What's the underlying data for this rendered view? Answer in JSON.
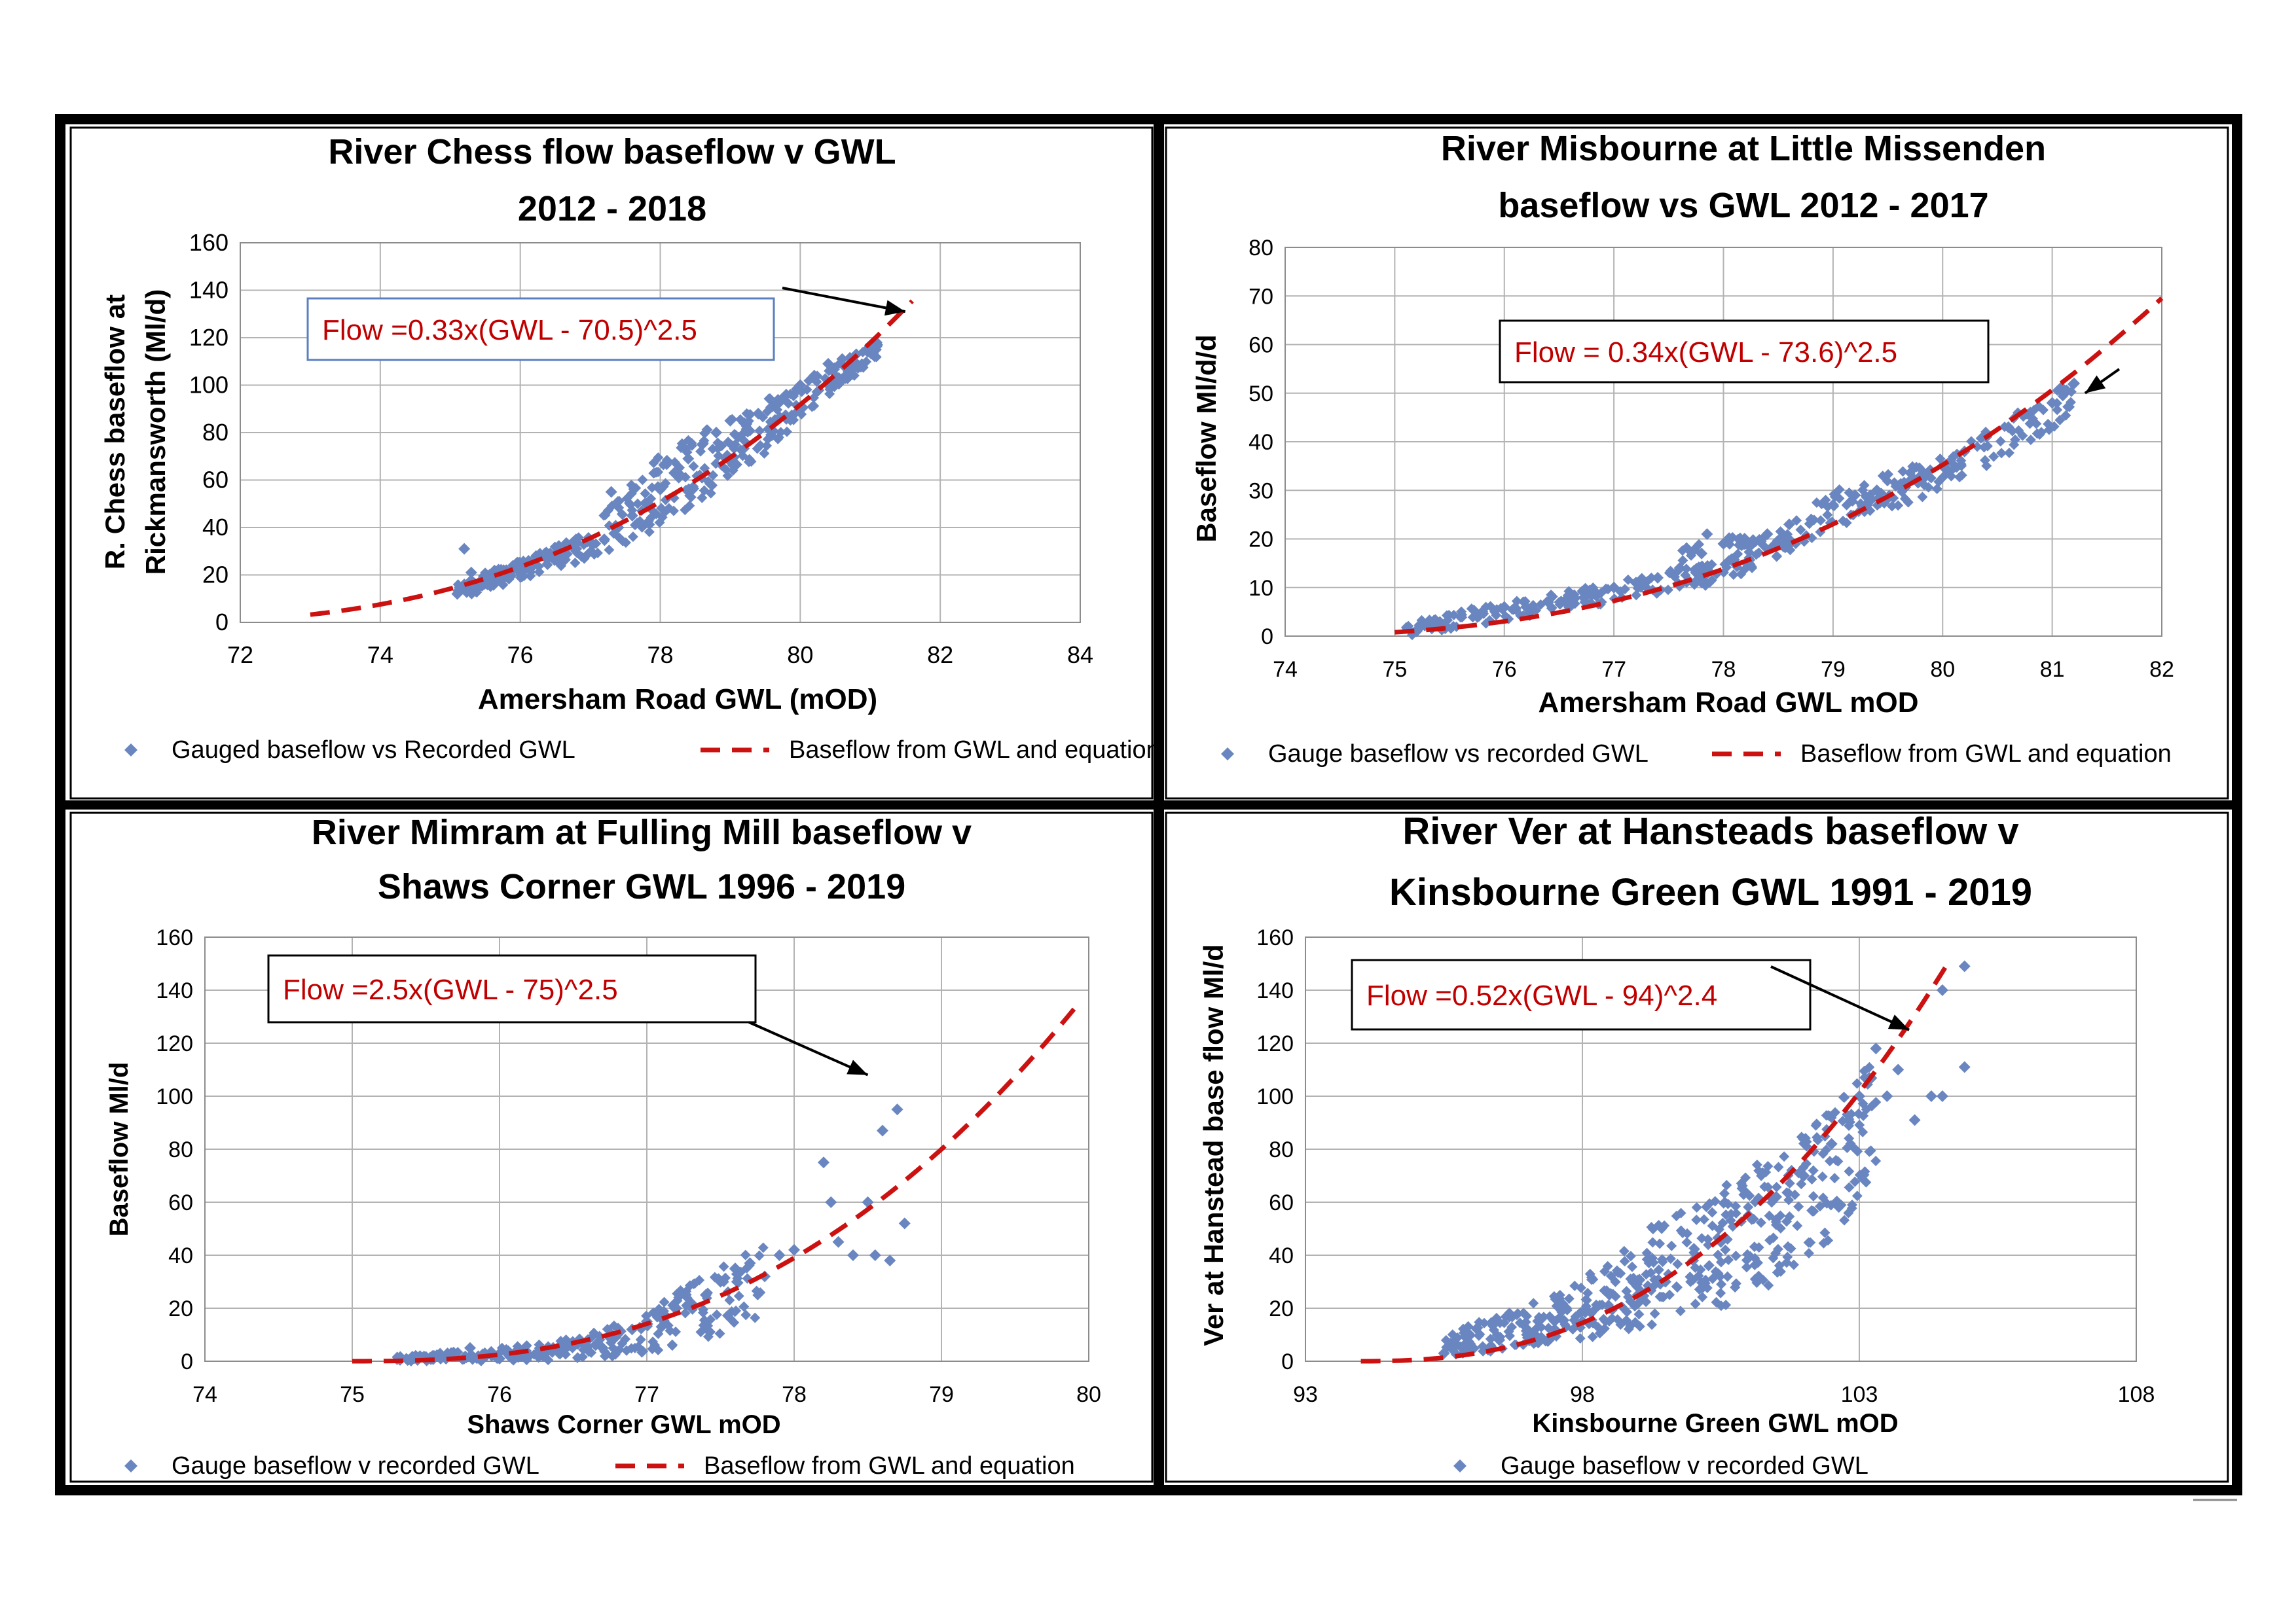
{
  "colors": {
    "marker": "#6A86C0",
    "curve": "#CC1111",
    "grid": "#B3B3B3",
    "frame": "#000000",
    "eqtext": "#C00000",
    "eqborder_blue": "#5B7FC0"
  },
  "chart_data": [
    {
      "id": "chess",
      "type": "scatter",
      "title_lines": [
        "River Chess flow baseflow v GWL",
        "2012 - 2018"
      ],
      "xlabel": "Amersham Road GWL (mOD)",
      "ylabel_lines": [
        "R. Chess baseflow at",
        "Rickmansworth (Ml/d)"
      ],
      "xlim": [
        72,
        84
      ],
      "ylim": [
        0,
        160
      ],
      "xticks": [
        72,
        74,
        76,
        78,
        80,
        82,
        84
      ],
      "yticks": [
        0,
        20,
        40,
        60,
        80,
        100,
        120,
        140,
        160
      ],
      "xtick_labels": [
        "72",
        "74",
        "76",
        "78",
        "80",
        "82",
        "84"
      ],
      "ytick_labels": [
        "0",
        "20",
        "40",
        "60",
        "80",
        "100",
        "120",
        "140",
        "160"
      ],
      "equation": {
        "text": "Flow =0.33x(GWL - 70.5)^2.5",
        "border": "blue",
        "arrow_to": [
          81.5,
          131
        ]
      },
      "curve": {
        "a": 0.33,
        "b": 70.5,
        "n": 2.5,
        "x_from": 73.0,
        "x_to": 81.6
      },
      "legend": [
        {
          "kind": "marker",
          "label": "Gauged baseflow vs Recorded GWL"
        },
        {
          "kind": "dash",
          "label": "Baseflow from GWL and equation"
        }
      ],
      "points": [
        [
          75.1,
          12
        ],
        [
          75.2,
          16
        ],
        [
          75.2,
          31
        ],
        [
          75.3,
          21
        ],
        [
          75.4,
          15
        ],
        [
          75.6,
          20
        ],
        [
          75.8,
          22
        ],
        [
          76.0,
          24
        ],
        [
          76.2,
          25
        ],
        [
          76.4,
          27
        ],
        [
          76.6,
          29
        ],
        [
          76.8,
          31
        ],
        [
          77.0,
          34
        ],
        [
          77.2,
          35
        ],
        [
          77.3,
          55
        ],
        [
          77.4,
          40
        ],
        [
          77.6,
          45
        ],
        [
          77.8,
          50
        ],
        [
          78.0,
          56
        ],
        [
          78.2,
          63
        ],
        [
          78.4,
          69
        ],
        [
          78.6,
          75
        ],
        [
          78.8,
          80
        ],
        [
          79.0,
          85
        ],
        [
          79.2,
          84
        ],
        [
          79.4,
          88
        ],
        [
          79.6,
          91
        ],
        [
          79.8,
          96
        ],
        [
          80.0,
          100
        ],
        [
          80.2,
          104
        ],
        [
          80.4,
          109
        ],
        [
          80.6,
          111
        ],
        [
          80.8,
          113
        ],
        [
          81.0,
          115
        ],
        [
          81.1,
          117
        ]
      ],
      "bands": [
        {
          "x": [
            75.1,
            76.0,
            77.0,
            78.0,
            79.0,
            80.0,
            81.1
          ],
          "lo": [
            10,
            18,
            27,
            40,
            58,
            85,
            112
          ],
          "hi": [
            17,
            26,
            38,
            75,
            86,
            101,
            118
          ],
          "n": 420
        }
      ]
    },
    {
      "id": "misbourne",
      "type": "scatter",
      "title_lines": [
        "River Misbourne at Little Missenden",
        "baseflow vs GWL 2012 - 2017"
      ],
      "xlabel": "Amersham  Road GWL  mOD",
      "ylabel_lines": [
        "Baseflow   Ml/d/d"
      ],
      "xlim": [
        74,
        82
      ],
      "ylim": [
        0,
        80
      ],
      "xticks": [
        74,
        75,
        76,
        77,
        78,
        79,
        80,
        81,
        82
      ],
      "yticks": [
        0,
        10,
        20,
        30,
        40,
        50,
        60,
        70,
        80
      ],
      "xtick_labels": [
        "74",
        "75",
        "76",
        "77",
        "78",
        "79",
        "80",
        "81",
        "82"
      ],
      "ytick_labels": [
        "0",
        "10",
        "20",
        "30",
        "40",
        "50",
        "60",
        "70",
        "80"
      ],
      "equation": {
        "text": "Flow = 0.34x(GWL - 73.6)^2.5",
        "border": "black",
        "arrow_to": [
          81.3,
          50
        ]
      },
      "curve": {
        "a": 0.34,
        "b": 73.6,
        "n": 2.5,
        "x_from": 75.0,
        "x_to": 82.0
      },
      "legend": [
        {
          "kind": "marker",
          "label": "Gauge baseflow vs recorded GWL"
        },
        {
          "kind": "dash",
          "label": "Baseflow from GWL and equation"
        }
      ],
      "points": [
        [
          75.2,
          1
        ],
        [
          75.4,
          2
        ],
        [
          75.6,
          4
        ],
        [
          75.8,
          5
        ],
        [
          76.0,
          6
        ],
        [
          76.2,
          6
        ],
        [
          76.4,
          7
        ],
        [
          76.6,
          8
        ],
        [
          76.8,
          9
        ],
        [
          77.0,
          10
        ],
        [
          77.2,
          11
        ],
        [
          77.4,
          12
        ],
        [
          77.6,
          14
        ],
        [
          77.8,
          17
        ],
        [
          77.85,
          21
        ],
        [
          78.0,
          19
        ],
        [
          78.2,
          19
        ],
        [
          78.4,
          21
        ],
        [
          78.6,
          23
        ],
        [
          78.8,
          24
        ],
        [
          79.0,
          27
        ],
        [
          79.2,
          29
        ],
        [
          79.4,
          30
        ],
        [
          79.6,
          31
        ],
        [
          79.8,
          33
        ],
        [
          80.0,
          35
        ],
        [
          80.2,
          38
        ],
        [
          80.4,
          41
        ],
        [
          80.6,
          43
        ],
        [
          80.8,
          46
        ],
        [
          81.0,
          48
        ],
        [
          81.1,
          50
        ],
        [
          81.2,
          52
        ]
      ],
      "bands": [
        {
          "x": [
            75.1,
            76.0,
            77.0,
            77.5,
            78.0,
            79.0,
            80.0,
            81.2
          ],
          "lo": [
            0,
            3,
            7,
            9,
            11,
            22,
            30,
            45
          ],
          "hi": [
            3,
            7,
            11,
            14,
            15,
            30,
            37,
            53
          ],
          "n": 380
        },
        {
          "x": [
            77.6,
            77.9,
            78.3,
            78.6
          ],
          "lo": [
            15,
            19,
            18,
            18
          ],
          "hi": [
            18,
            21,
            20,
            20
          ],
          "n": 40
        }
      ]
    },
    {
      "id": "mimram",
      "type": "scatter",
      "title_lines": [
        "River  Mimram at Fulling Mill baseflow v",
        "Shaws Corner GWL 1996 - 2019"
      ],
      "xlabel": "Shaws Corner GWL mOD",
      "ylabel_lines": [
        "Baseflow Ml/d"
      ],
      "xlim": [
        74,
        80
      ],
      "ylim": [
        0,
        160
      ],
      "xticks": [
        74,
        75,
        76,
        77,
        78,
        79,
        80
      ],
      "yticks": [
        0,
        20,
        40,
        60,
        80,
        100,
        120,
        140,
        160
      ],
      "xtick_labels": [
        "74",
        "75",
        "76",
        "77",
        "78",
        "79",
        "80"
      ],
      "ytick_labels": [
        "0",
        "20",
        "40",
        "60",
        "80",
        "100",
        "120",
        "140",
        "160"
      ],
      "equation": {
        "text": "Flow =2.5x(GWL  - 75)^2.5",
        "border": "black",
        "arrow_to": [
          78.5,
          108
        ]
      },
      "curve": {
        "a": 2.5,
        "b": 75.0,
        "n": 2.5,
        "x_from": 75.0,
        "x_to": 79.9
      },
      "legend": [
        {
          "kind": "marker",
          "label": "Gauge baseflow v recorded GWL"
        },
        {
          "kind": "dash",
          "label": "Baseflow from GWL and equation"
        }
      ],
      "points": [
        [
          75.4,
          1
        ],
        [
          75.6,
          1
        ],
        [
          75.7,
          2
        ],
        [
          75.8,
          5
        ],
        [
          75.9,
          3
        ],
        [
          76.0,
          1
        ],
        [
          76.1,
          3
        ],
        [
          76.2,
          2
        ],
        [
          76.3,
          3
        ],
        [
          76.4,
          5
        ],
        [
          76.5,
          6
        ],
        [
          76.6,
          8
        ],
        [
          76.7,
          5
        ],
        [
          76.8,
          10
        ],
        [
          76.9,
          12
        ],
        [
          77.0,
          15
        ],
        [
          77.1,
          13
        ],
        [
          77.2,
          20
        ],
        [
          77.3,
          22
        ],
        [
          77.4,
          25
        ],
        [
          77.5,
          30
        ],
        [
          77.6,
          35
        ],
        [
          77.7,
          37
        ],
        [
          77.8,
          32
        ],
        [
          77.9,
          40
        ],
        [
          78.0,
          42
        ],
        [
          78.2,
          75
        ],
        [
          78.25,
          60
        ],
        [
          78.3,
          45
        ],
        [
          78.4,
          40
        ],
        [
          78.5,
          60
        ],
        [
          78.55,
          40
        ],
        [
          78.6,
          87
        ],
        [
          78.65,
          38
        ],
        [
          78.7,
          95
        ],
        [
          78.75,
          52
        ]
      ],
      "bands": [
        {
          "x": [
            75.3,
            75.8,
            76.2,
            76.6,
            77.0,
            77.4,
            77.8
          ],
          "lo": [
            0,
            0,
            0,
            1,
            3,
            8,
            18
          ],
          "hi": [
            2,
            4,
            6,
            10,
            20,
            32,
            45
          ],
          "n": 260
        }
      ]
    },
    {
      "id": "ver",
      "type": "scatter",
      "title_lines": [
        "River  Ver at Hansteads baseflow v",
        "Kinsbourne Green GWL 1991 - 2019"
      ],
      "xlabel": "Kinsbourne Green GWL mOD",
      "ylabel_lines": [
        "Ver at Hanstead base flow Ml/d"
      ],
      "xlim": [
        93,
        108
      ],
      "ylim": [
        0,
        160
      ],
      "xticks": [
        93,
        98,
        103,
        108
      ],
      "yticks": [
        0,
        20,
        40,
        60,
        80,
        100,
        120,
        140,
        160
      ],
      "xtick_labels": [
        "93",
        "98",
        "103",
        "108"
      ],
      "ytick_labels": [
        "0",
        "20",
        "40",
        "60",
        "80",
        "100",
        "120",
        "140",
        "160"
      ],
      "equation": {
        "text": "Flow =0.52x(GWL  - 94)^2.4",
        "border": "black",
        "arrow_to": [
          103.9,
          125
        ]
      },
      "curve": {
        "a": 0.52,
        "b": 94.0,
        "n": 2.4,
        "x_from": 94.0,
        "x_to": 104.6
      },
      "legend": [
        {
          "kind": "marker",
          "label": "Gauge baseflow v recorded GWL"
        }
      ],
      "points": [
        [
          95.5,
          3
        ],
        [
          96.0,
          5
        ],
        [
          96.5,
          8
        ],
        [
          97.0,
          10
        ],
        [
          97.5,
          12
        ],
        [
          98.0,
          15
        ],
        [
          98.5,
          20
        ],
        [
          99.0,
          25
        ],
        [
          99.5,
          30
        ],
        [
          100.0,
          38
        ],
        [
          100.5,
          45
        ],
        [
          101.0,
          55
        ],
        [
          101.5,
          62
        ],
        [
          102.0,
          70
        ],
        [
          102.5,
          82
        ],
        [
          103.0,
          100
        ],
        [
          103.3,
          118
        ],
        [
          103.5,
          100
        ],
        [
          103.7,
          110
        ],
        [
          104.0,
          91
        ],
        [
          104.3,
          100
        ],
        [
          104.5,
          140
        ],
        [
          104.9,
          149
        ],
        [
          104.9,
          111
        ],
        [
          104.5,
          100
        ]
      ],
      "bands": [
        {
          "x": [
            95.5,
            96.5,
            97.5,
            98.5,
            99.5,
            100.5,
            101.5,
            102.5,
            103.3
          ],
          "lo": [
            2,
            4,
            7,
            10,
            15,
            20,
            30,
            45,
            70
          ],
          "hi": [
            10,
            18,
            25,
            38,
            55,
            65,
            80,
            95,
            118
          ],
          "n": 480
        }
      ]
    }
  ]
}
